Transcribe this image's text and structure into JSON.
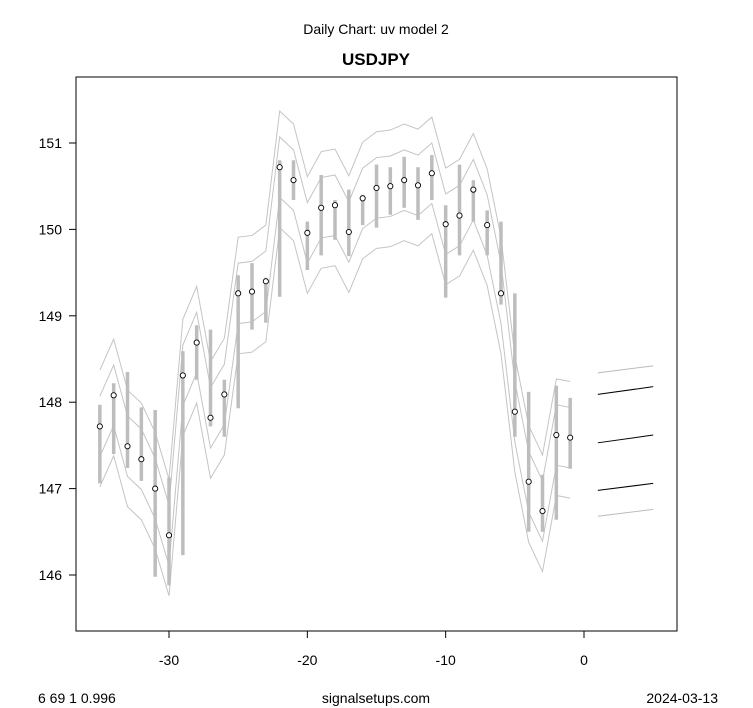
{
  "chart_data": {
    "type": "line",
    "title": "Daily Chart: uv model 2",
    "subtitle": "USDJPY",
    "xlabel": "",
    "ylabel": "",
    "xlim": [
      -36.5,
      6.5
    ],
    "ylim": [
      145.4,
      151.8
    ],
    "x_ticks": [
      -30,
      -20,
      -10,
      0
    ],
    "y_ticks": [
      146,
      147,
      148,
      149,
      150,
      151
    ],
    "grid": false,
    "x": [
      -35,
      -34,
      -33,
      -32,
      -31,
      -30,
      -29,
      -28,
      -27,
      -26,
      -25,
      -24,
      -23,
      -22,
      -21,
      -20,
      -19,
      -18,
      -17,
      -16,
      -15,
      -14,
      -13,
      -12,
      -11,
      -10,
      -9,
      -8,
      -7,
      -6,
      -5,
      -4,
      -3,
      -2,
      -1
    ],
    "close": [
      147.72,
      148.08,
      147.49,
      147.34,
      147.0,
      146.46,
      148.31,
      148.69,
      147.82,
      148.09,
      149.26,
      149.28,
      149.4,
      150.72,
      150.57,
      149.96,
      150.25,
      150.28,
      149.97,
      150.36,
      150.48,
      150.5,
      150.57,
      150.51,
      150.65,
      150.06,
      150.16,
      150.46,
      150.05,
      149.26,
      147.89,
      147.08,
      146.74,
      147.62,
      147.59
    ],
    "high": [
      147.97,
      148.22,
      148.35,
      147.94,
      147.91,
      147.13,
      148.59,
      148.89,
      148.84,
      148.26,
      149.47,
      149.61,
      149.44,
      150.8,
      150.8,
      150.09,
      150.63,
      150.34,
      150.46,
      150.4,
      150.75,
      150.72,
      150.84,
      150.72,
      150.86,
      150.28,
      150.75,
      150.57,
      150.22,
      150.09,
      149.26,
      148.12,
      147.16,
      148.19,
      148.05
    ],
    "low": [
      147.06,
      147.4,
      147.24,
      147.09,
      145.98,
      145.88,
      146.23,
      148.26,
      147.72,
      147.6,
      147.93,
      148.84,
      148.92,
      149.22,
      150.34,
      149.53,
      149.7,
      149.88,
      149.69,
      150.05,
      150.02,
      150.17,
      150.25,
      150.11,
      150.34,
      149.21,
      149.7,
      150.09,
      149.7,
      149.13,
      147.6,
      146.5,
      146.5,
      146.64,
      147.23
    ],
    "band_offsets": [
      0.65,
      0.35,
      -0.35,
      -0.7
    ],
    "forecast": {
      "x": [
        1,
        5
      ],
      "series": [
        {
          "name": "upper-outer",
          "values": [
            148.34,
            148.42
          ],
          "color": "#bbbbbb"
        },
        {
          "name": "upper",
          "values": [
            148.09,
            148.18
          ],
          "color": "#000000"
        },
        {
          "name": "mid",
          "values": [
            147.53,
            147.62
          ],
          "color": "#000000"
        },
        {
          "name": "lower",
          "values": [
            146.98,
            147.06
          ],
          "color": "#000000"
        },
        {
          "name": "lower-outer",
          "values": [
            146.68,
            146.76
          ],
          "color": "#bbbbbb"
        }
      ]
    }
  },
  "footer": {
    "left": "6 69 1 0.996",
    "center": "signalsetups.com",
    "right": "2024-03-13"
  },
  "colors": {
    "bar": "#bdbdbd",
    "band": "#c4c4c4",
    "point": "#000000"
  }
}
